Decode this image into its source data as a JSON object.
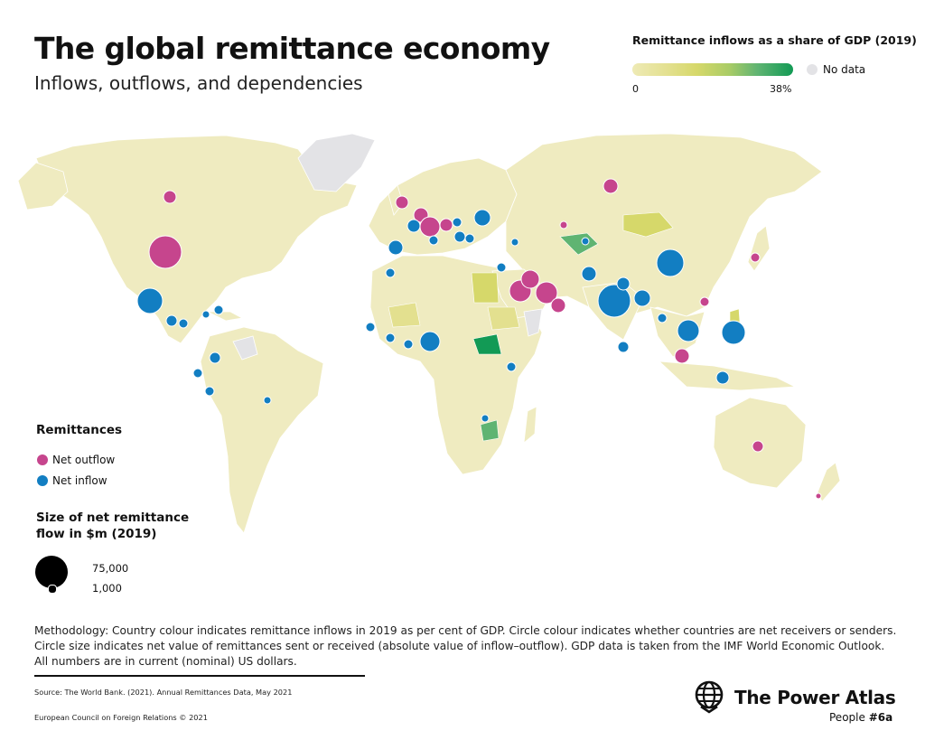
{
  "title": "The global remittance economy",
  "subtitle": "Inflows, outflows, and dependencies",
  "colour_legend": {
    "title": "Remittance inflows as a share of GDP (2019)",
    "min_label": "0",
    "max_label": "38%",
    "no_data_label": "No data",
    "ramp_colors": [
      "#eeeab5",
      "#d6d86a",
      "#5fb472",
      "#129a55"
    ],
    "no_data_color": "#e3e3e6"
  },
  "remittances_legend": {
    "heading": "Remittances",
    "net_outflow_label": "Net outflow",
    "net_inflow_label": "Net inflow",
    "outflow_color": "#c6458d",
    "inflow_color": "#127ec2"
  },
  "size_legend": {
    "heading": "Size of net remittance flow in $m (2019)",
    "large_value": "75,000",
    "small_value": "1,000"
  },
  "methodology": "Methodology: Country colour indicates remittance inflows in 2019 as per cent of GDP. Circle colour indicates whether countries are net receivers or senders. Circle size indicates net value of remittances sent or received (absolute value of inflow–outflow). GDP data is taken from the IMF World Economic Outlook. All numbers are in current (nominal) US dollars.",
  "source": "Source: The World Bank. (2021). Annual Remittances Data, May 2021",
  "copyright": "European Council on Foreign Relations © 2021",
  "brand": {
    "name": "The Power Atlas",
    "series_prefix": "People ",
    "series_number": "#6a"
  }
}
